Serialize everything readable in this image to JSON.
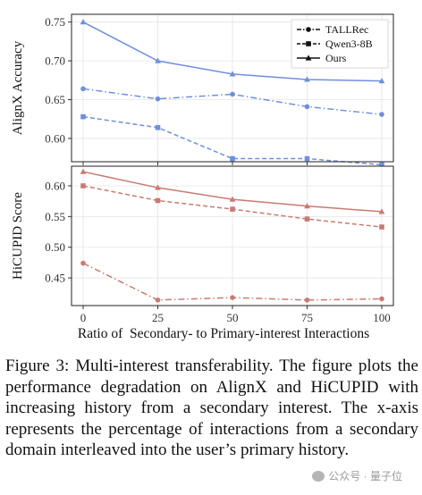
{
  "chart_data": [
    {
      "type": "line",
      "x": [
        0,
        25,
        50,
        75,
        100
      ],
      "ylabel": "AlignX Accuracy",
      "ylim": [
        0.57,
        0.76
      ],
      "yticks": [
        "0.60",
        "0.65",
        "0.70",
        "0.75"
      ],
      "grid": true,
      "legend": "top-right",
      "color": "#6f8fdc",
      "series": [
        {
          "name": "TALLRec",
          "values": [
            0.664,
            0.651,
            0.657,
            0.641,
            0.631
          ],
          "marker": "circle",
          "dash": "dashdot"
        },
        {
          "name": "Qwen3-8B",
          "values": [
            0.628,
            0.614,
            0.574,
            0.574,
            0.566
          ],
          "marker": "square",
          "dash": "dashed"
        },
        {
          "name": "Ours",
          "values": [
            0.75,
            0.7,
            0.683,
            0.676,
            0.674
          ],
          "marker": "triangle",
          "dash": "solid"
        }
      ]
    },
    {
      "type": "line",
      "x": [
        0,
        25,
        50,
        75,
        100
      ],
      "xticks": [
        "0",
        "25",
        "50",
        "75",
        "100"
      ],
      "ylabel": "HiCUPID Score",
      "xlabel": "Ratio of  Secondary- to Primary-interest Interactions",
      "ylim": [
        0.405,
        0.632
      ],
      "yticks": [
        "0.45",
        "0.50",
        "0.55",
        "0.60"
      ],
      "grid": true,
      "color": "#c97a72",
      "series": [
        {
          "name": "TALLRec",
          "values": [
            0.474,
            0.414,
            0.418,
            0.414,
            0.416
          ],
          "marker": "circle",
          "dash": "dashdot"
        },
        {
          "name": "Qwen3-8B",
          "values": [
            0.6,
            0.576,
            0.562,
            0.546,
            0.533
          ],
          "marker": "square",
          "dash": "dashed"
        },
        {
          "name": "Ours",
          "values": [
            0.623,
            0.597,
            0.578,
            0.567,
            0.558
          ],
          "marker": "triangle",
          "dash": "solid"
        }
      ]
    }
  ],
  "caption": "Figure 3: Multi-interest transferability. The figure plots the performance degradation on AlignX and HiCUPID with increasing history from a secondary interest. The x-axis represents the percentage of interactions from a secondary domain interleaved into the user’s primary history.",
  "watermark": {
    "icon": "wechat-icon",
    "text": "公众号 · 量子位"
  }
}
